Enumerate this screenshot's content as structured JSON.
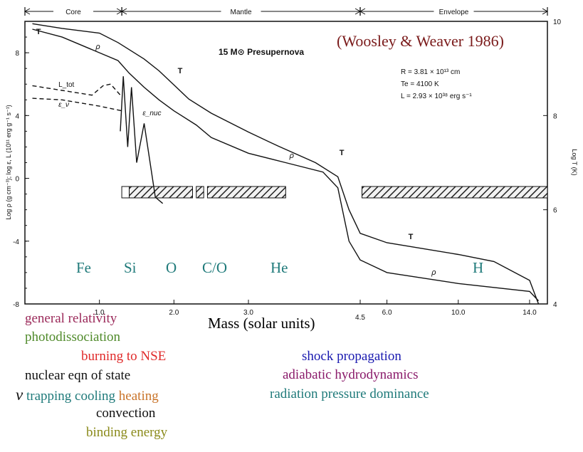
{
  "chart_data": {
    "type": "line",
    "title": "15 M⊙ Presupernova",
    "citation": "(Woosley & Weaver 1986)",
    "parameters": [
      "R = 3.81 × 10¹³ cm",
      "Te = 4100 K",
      "L = 2.93 × 10³⁸ erg s⁻¹"
    ],
    "xlabel": "Mass (solar units)",
    "ylabel_left": "Log ρ (g cm⁻³); log ε, L (10¹¹ erg g⁻¹ s⁻¹)",
    "ylabel_right": "Log T (K)",
    "x_ticks_left_scale": [
      "1.0",
      "2.0",
      "3.0"
    ],
    "x_ticks_right_scale": [
      "4.5",
      "6.0",
      "10.0",
      "14.0"
    ],
    "y_ticks_left": [
      "8",
      "4",
      "0",
      "-4",
      "-8"
    ],
    "y_ticks_right": [
      "10",
      "8",
      "6",
      "4"
    ],
    "ylim_left": [
      -8,
      10
    ],
    "ylim_right": [
      4,
      10
    ],
    "regions": [
      {
        "name": "Core",
        "range": [
          0.0,
          1.3
        ]
      },
      {
        "name": "Mantle",
        "range": [
          1.3,
          4.5
        ]
      },
      {
        "name": "Envelope",
        "range": [
          4.5,
          15.0
        ]
      }
    ],
    "series": [
      {
        "name": "T",
        "axis": "right",
        "points": [
          [
            0.1,
            9.95
          ],
          [
            0.5,
            9.85
          ],
          [
            1.0,
            9.75
          ],
          [
            1.25,
            9.55
          ],
          [
            1.4,
            9.4
          ],
          [
            1.6,
            9.2
          ],
          [
            1.8,
            8.95
          ],
          [
            2.0,
            8.65
          ],
          [
            2.2,
            8.35
          ],
          [
            2.5,
            8.05
          ],
          [
            3.0,
            7.65
          ],
          [
            3.4,
            7.35
          ],
          [
            3.9,
            7.0
          ],
          [
            4.2,
            6.7
          ],
          [
            4.35,
            6.0
          ],
          [
            4.5,
            5.5
          ],
          [
            6.0,
            5.3
          ],
          [
            10.0,
            5.05
          ],
          [
            12.0,
            4.9
          ],
          [
            14.0,
            4.5
          ],
          [
            14.5,
            4.0
          ]
        ]
      },
      {
        "name": "ρ",
        "axis": "left",
        "points": [
          [
            0.1,
            9.5
          ],
          [
            0.5,
            9.0
          ],
          [
            1.0,
            8.0
          ],
          [
            1.25,
            7.5
          ],
          [
            1.4,
            6.7
          ],
          [
            1.6,
            5.8
          ],
          [
            1.8,
            5.0
          ],
          [
            2.0,
            4.3
          ],
          [
            2.3,
            3.4
          ],
          [
            2.5,
            2.6
          ],
          [
            3.0,
            1.6
          ],
          [
            3.5,
            1.0
          ],
          [
            4.0,
            0.4
          ],
          [
            4.2,
            -0.6
          ],
          [
            4.35,
            -4.0
          ],
          [
            4.5,
            -5.2
          ],
          [
            6.0,
            -6.0
          ],
          [
            10.0,
            -6.7
          ],
          [
            14.0,
            -7.2
          ],
          [
            14.5,
            -7.8
          ]
        ]
      },
      {
        "name": "L_tot",
        "axis": "left",
        "points": [
          [
            0.1,
            5.9
          ],
          [
            0.5,
            5.6
          ],
          [
            0.9,
            5.3
          ],
          [
            1.05,
            5.9
          ],
          [
            1.15,
            6.0
          ],
          [
            1.3,
            5.2
          ]
        ]
      },
      {
        "name": "ε_ν",
        "axis": "left",
        "points": [
          [
            0.1,
            5.1
          ],
          [
            0.5,
            5.0
          ],
          [
            1.0,
            4.6
          ],
          [
            1.3,
            4.3
          ]
        ]
      },
      {
        "name": "ε_nuc",
        "axis": "left",
        "points": [
          [
            1.28,
            3.0
          ],
          [
            1.32,
            6.5
          ],
          [
            1.38,
            2.0
          ],
          [
            1.43,
            5.8
          ],
          [
            1.5,
            1.0
          ],
          [
            1.6,
            3.5
          ],
          [
            1.75,
            -1.2
          ],
          [
            1.85,
            -1.6
          ]
        ]
      }
    ],
    "convective_zones": [
      [
        1.3,
        1.4
      ],
      [
        1.4,
        2.25
      ],
      [
        2.3,
        2.4
      ],
      [
        2.45,
        3.5
      ],
      [
        4.6,
        15.0
      ]
    ],
    "element_zones": [
      "Fe",
      "Si",
      "O",
      "C/O",
      "He",
      "H"
    ],
    "physics_labels": {
      "left": [
        "general relativity",
        "photodissociation",
        "burning to NSE",
        "nuclear eqn of state",
        "ν",
        "trapping",
        "cooling",
        "heating",
        "convection",
        "binding energy"
      ],
      "right": [
        "shock propagation",
        "adiabatic hydrodynamics",
        "radiation pressure dominance"
      ]
    },
    "colors": {
      "citation": "#7a1a1a",
      "zones": "#1f7a7a",
      "general_relativity": "#9b2a5a",
      "photodissociation": "#4f8a2a",
      "burning": "#e02a2a",
      "nuclear": "#111111",
      "nu": "#111111",
      "trapping": "#1f7a7a",
      "cooling": "#1f7a7a",
      "heating": "#c9742a",
      "convection": "#111111",
      "binding": "#8a8a1a",
      "shock": "#1a1ab0",
      "adiabatic": "#8a1a6a",
      "radiation": "#1f7a7a"
    }
  }
}
